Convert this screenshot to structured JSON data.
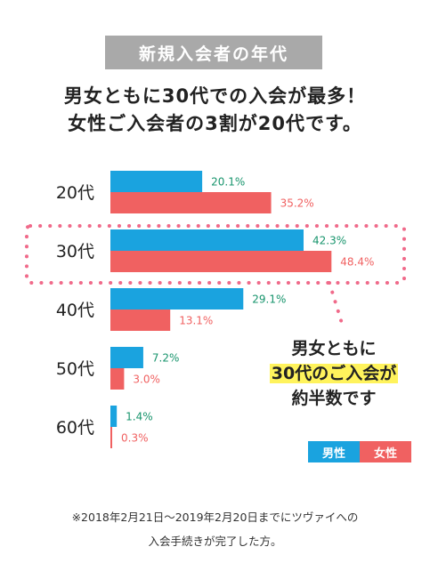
{
  "badge": "新規入会者の年代",
  "headline": {
    "line1": "男女ともに30代での入会が最多！",
    "line2": "女性ご入会者の3割が20代です。"
  },
  "callout": {
    "line1": "男女ともに",
    "line2": "30代のご入会が",
    "line3": "約半数です"
  },
  "legend": {
    "male": "男性",
    "female": "女性"
  },
  "note": {
    "line1": "※2018年2月21日〜2019年2月20日までにツヴァイへの",
    "line2": "入会手続きが完了した方。"
  },
  "colors": {
    "male": "#1aa3df",
    "female": "#f06161",
    "male_label": "#17946c",
    "female_label": "#f06161",
    "highlight_box": "#f06a8a"
  },
  "chart_data": {
    "type": "bar",
    "orientation": "horizontal",
    "categories": [
      "20代",
      "30代",
      "40代",
      "50代",
      "60代"
    ],
    "series": [
      {
        "name": "男性",
        "values": [
          20.1,
          42.3,
          29.1,
          7.2,
          1.4
        ],
        "labels": [
          "20.1%",
          "42.3%",
          "29.1%",
          "7.2%",
          "1.4%"
        ]
      },
      {
        "name": "女性",
        "values": [
          35.2,
          48.4,
          13.1,
          3.0,
          0.3
        ],
        "labels": [
          "35.2%",
          "48.4%",
          "13.1%",
          "3.0%",
          "0.3%"
        ]
      }
    ],
    "xlim": [
      0,
      55
    ],
    "highlight_category": "30代",
    "grid": false
  }
}
